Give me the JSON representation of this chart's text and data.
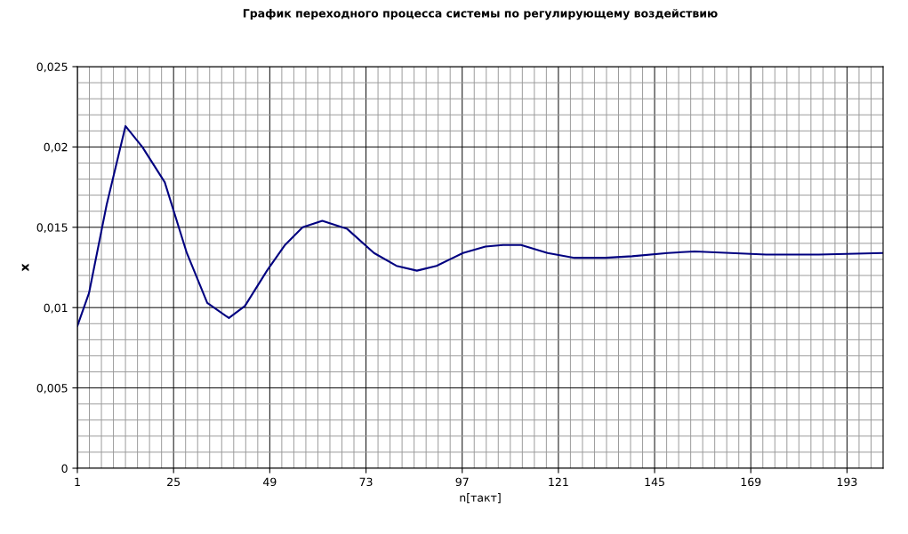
{
  "chart_data": {
    "type": "line",
    "title": "График переходного процесса системы по регулирующему воздействию",
    "xlabel": "n[такт]",
    "ylabel": "x",
    "x": [
      1,
      3.9,
      8.3,
      13,
      17.2,
      22.8,
      28.3,
      33.4,
      38.8,
      42.8,
      48.3,
      52.8,
      57.2,
      62.1,
      68.3,
      75,
      80.6,
      85.7,
      90.6,
      97.2,
      102.8,
      107.2,
      111.7,
      118.3,
      125,
      132.8,
      139.4,
      148.3,
      155,
      163.9,
      172.8,
      186,
      202
    ],
    "series": [
      {
        "color": "#000080",
        "values": [
          0.00885,
          0.0109,
          0.0164,
          0.0213,
          0.02,
          0.0178,
          0.0134,
          0.0103,
          0.00935,
          0.0101,
          0.0123,
          0.0139,
          0.015,
          0.0154,
          0.0149,
          0.0134,
          0.0126,
          0.0123,
          0.0126,
          0.0134,
          0.0138,
          0.0139,
          0.0139,
          0.0134,
          0.0131,
          0.0131,
          0.0132,
          0.0134,
          0.0135,
          0.0134,
          0.0133,
          0.0133,
          0.0134
        ]
      }
    ],
    "xlim": [
      1,
      202
    ],
    "ylim": [
      0,
      0.025
    ],
    "xticks": [
      1,
      {
        "value": 4,
        "label": null
      },
      {
        "value": 7,
        "label": null
      },
      {
        "value": 10,
        "label": null
      },
      {
        "value": 13,
        "label": null
      },
      {
        "value": 16,
        "label": null
      },
      {
        "value": 19,
        "label": null
      },
      {
        "value": 22,
        "label": null
      },
      25,
      {
        "value": 28,
        "label": null
      },
      {
        "value": 31,
        "label": null
      },
      {
        "value": 34,
        "label": null
      },
      {
        "value": 37,
        "label": null
      },
      {
        "value": 40,
        "label": null
      },
      {
        "value": 43,
        "label": null
      },
      {
        "value": 46,
        "label": null
      },
      49,
      {
        "value": 52,
        "label": null
      },
      {
        "value": 55,
        "label": null
      },
      {
        "value": 58,
        "label": null
      },
      {
        "value": 61,
        "label": null
      },
      {
        "value": 64,
        "label": null
      },
      {
        "value": 67,
        "label": null
      },
      {
        "value": 70,
        "label": null
      },
      73,
      {
        "value": 76,
        "label": null
      },
      {
        "value": 79,
        "label": null
      },
      {
        "value": 82,
        "label": null
      },
      {
        "value": 85,
        "label": null
      },
      {
        "value": 88,
        "label": null
      },
      {
        "value": 91,
        "label": null
      },
      {
        "value": 94,
        "label": null
      },
      97,
      {
        "value": 100,
        "label": null
      },
      {
        "value": 103,
        "label": null
      },
      {
        "value": 106,
        "label": null
      },
      {
        "value": 109,
        "label": null
      },
      {
        "value": 112,
        "label": null
      },
      {
        "value": 115,
        "label": null
      },
      {
        "value": 118,
        "label": null
      },
      121,
      {
        "value": 124,
        "label": null
      },
      {
        "value": 127,
        "label": null
      },
      {
        "value": 130,
        "label": null
      },
      {
        "value": 133,
        "label": null
      },
      {
        "value": 136,
        "label": null
      },
      {
        "value": 139,
        "label": null
      },
      {
        "value": 142,
        "label": null
      },
      145,
      {
        "value": 148,
        "label": null
      },
      {
        "value": 151,
        "label": null
      },
      {
        "value": 154,
        "label": null
      },
      {
        "value": 157,
        "label": null
      },
      {
        "value": 160,
        "label": null
      },
      {
        "value": 163,
        "label": null
      },
      {
        "value": 166,
        "label": null
      },
      169,
      {
        "value": 172,
        "label": null
      },
      {
        "value": 175,
        "label": null
      },
      {
        "value": 178,
        "label": null
      },
      {
        "value": 181,
        "label": null
      },
      {
        "value": 184,
        "label": null
      },
      {
        "value": 187,
        "label": null
      },
      {
        "value": 190,
        "label": null
      },
      193,
      {
        "value": 196,
        "label": null
      },
      {
        "value": 199,
        "label": null
      }
    ],
    "yticks": [
      {
        "value": 0,
        "label": "0"
      },
      {
        "value": 0.001,
        "label": null
      },
      {
        "value": 0.002,
        "label": null
      },
      {
        "value": 0.003,
        "label": null
      },
      {
        "value": 0.004,
        "label": null
      },
      {
        "value": 0.005,
        "label": "0,005"
      },
      {
        "value": 0.006,
        "label": null
      },
      {
        "value": 0.007,
        "label": null
      },
      {
        "value": 0.008,
        "label": null
      },
      {
        "value": 0.009,
        "label": null
      },
      {
        "value": 0.01,
        "label": "0,01"
      },
      {
        "value": 0.011,
        "label": null
      },
      {
        "value": 0.012,
        "label": null
      },
      {
        "value": 0.013,
        "label": null
      },
      {
        "value": 0.014,
        "label": null
      },
      {
        "value": 0.015,
        "label": "0,015"
      },
      {
        "value": 0.016,
        "label": null
      },
      {
        "value": 0.017,
        "label": null
      },
      {
        "value": 0.018,
        "label": null
      },
      {
        "value": 0.019,
        "label": null
      },
      {
        "value": 0.02,
        "label": "0,02"
      },
      {
        "value": 0.021,
        "label": null
      },
      {
        "value": 0.022,
        "label": null
      },
      {
        "value": 0.023,
        "label": null
      },
      {
        "value": 0.024,
        "label": null
      },
      {
        "value": 0.025,
        "label": "0,025"
      }
    ],
    "grid": true,
    "legend": false
  }
}
